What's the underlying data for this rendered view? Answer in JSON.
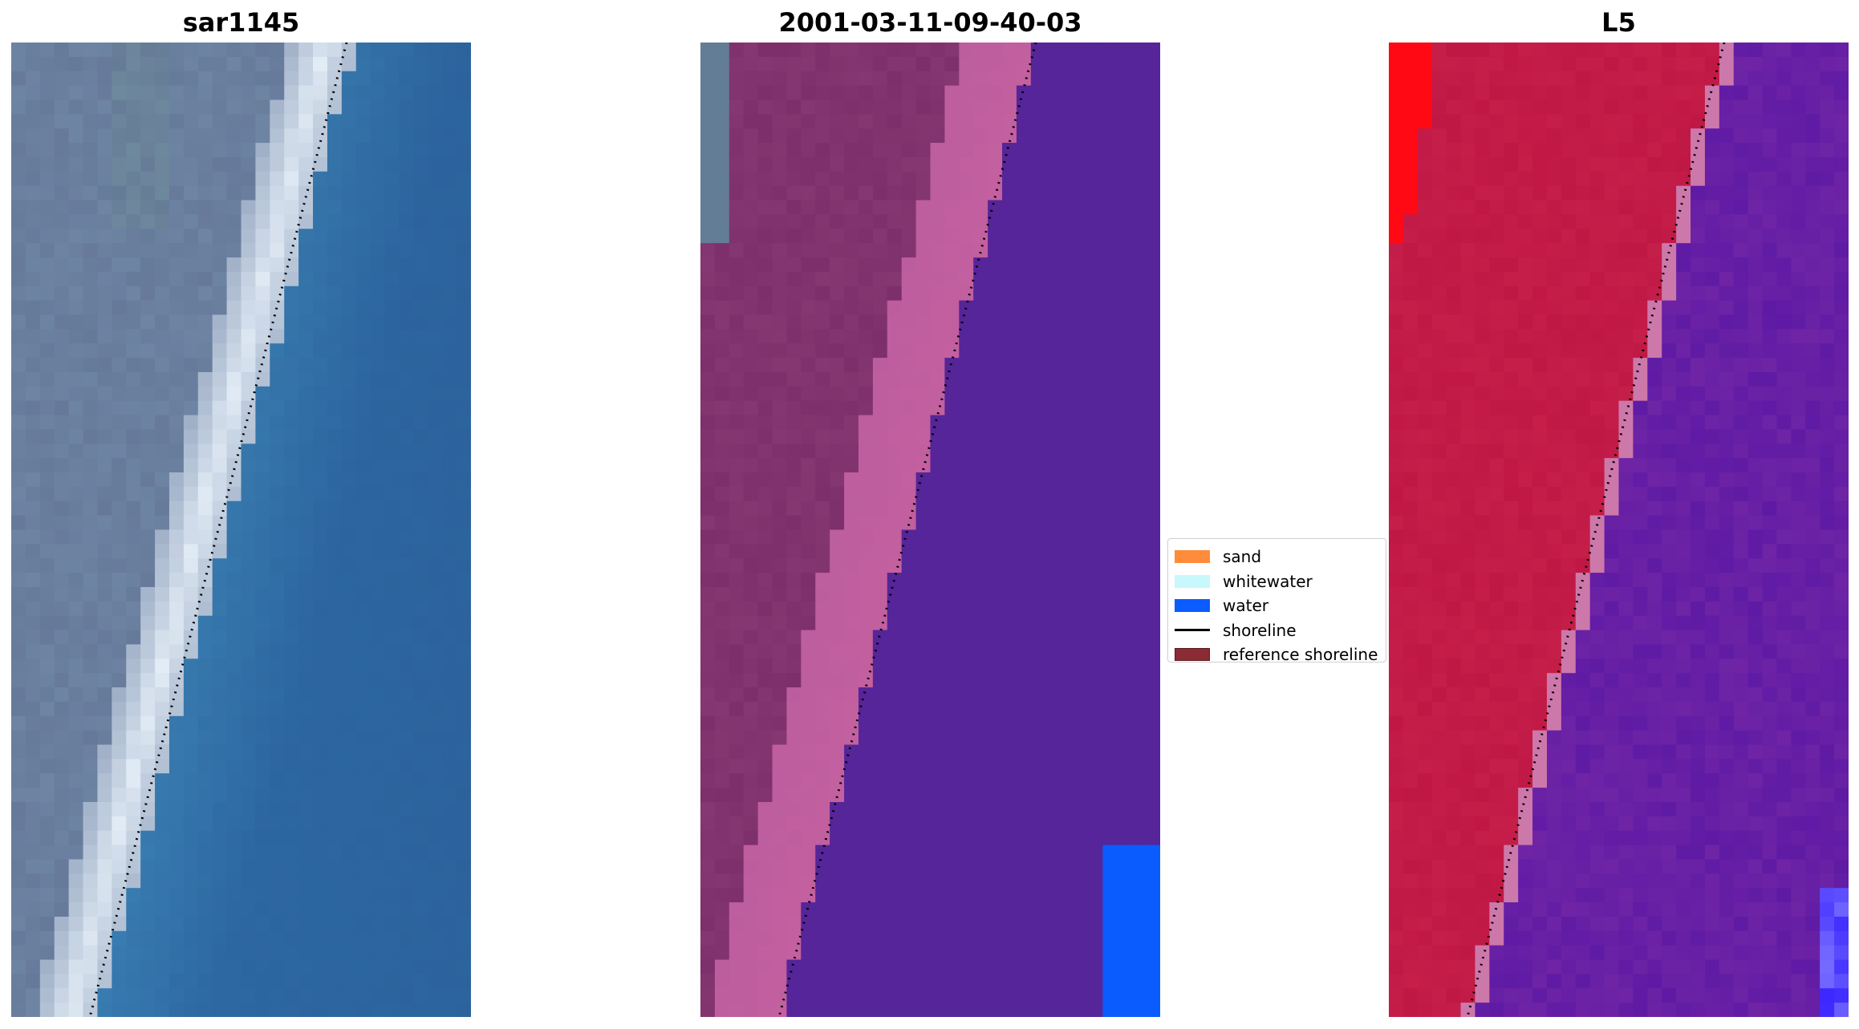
{
  "panels": [
    {
      "title": "sar1145",
      "style": "rgb"
    },
    {
      "title": "2001-03-11-09-40-03",
      "style": "classified"
    },
    {
      "title": "L5",
      "style": "index"
    }
  ],
  "legend": {
    "items": [
      {
        "label": "sand",
        "color": "#ff8c3a",
        "kind": "patch"
      },
      {
        "label": "whitewater",
        "color": "#c8f8fc",
        "kind": "patch"
      },
      {
        "label": "water",
        "color": "#0a5cff",
        "kind": "patch"
      },
      {
        "label": "shoreline",
        "color": "#000000",
        "kind": "line"
      },
      {
        "label": "reference shoreline",
        "color": "#8b2b33",
        "kind": "patch"
      }
    ]
  },
  "colors": {
    "sea": "#2e6ca8",
    "land": "#6e84a3",
    "beach": "#e4eef7",
    "classified_water": "#552599",
    "classified_land": "#7c2f6b",
    "classified_sand": "#b85c9c",
    "classified_bright_water": "#0a5cff",
    "index_land": "#c01845",
    "index_water": "#6e24a5"
  }
}
